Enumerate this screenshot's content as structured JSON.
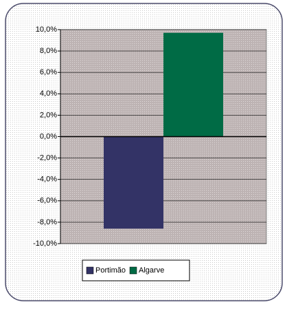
{
  "chart_data": {
    "type": "bar",
    "categories": [
      null
    ],
    "series": [
      {
        "name": "Portimão",
        "color": "#333366",
        "values": [
          -8.6
        ]
      },
      {
        "name": "Algarve",
        "color": "#006b45",
        "values": [
          9.7
        ]
      }
    ],
    "ylim": [
      -10,
      10
    ],
    "yticks": [
      {
        "value": -10,
        "label": "-10,0%"
      },
      {
        "value": -8,
        "label": "-8,0%"
      },
      {
        "value": -6,
        "label": "-6,0%"
      },
      {
        "value": -4,
        "label": "-4,0%"
      },
      {
        "value": -2,
        "label": "-2,0%"
      },
      {
        "value": 0,
        "label": "0,0%"
      },
      {
        "value": 2,
        "label": "2,0%"
      },
      {
        "value": 4,
        "label": "4,0%"
      },
      {
        "value": 6,
        "label": "6,0%"
      },
      {
        "value": 8,
        "label": "8,0%"
      },
      {
        "value": 10,
        "label": "10,0%"
      }
    ],
    "grid": true,
    "legend": "bottom"
  }
}
